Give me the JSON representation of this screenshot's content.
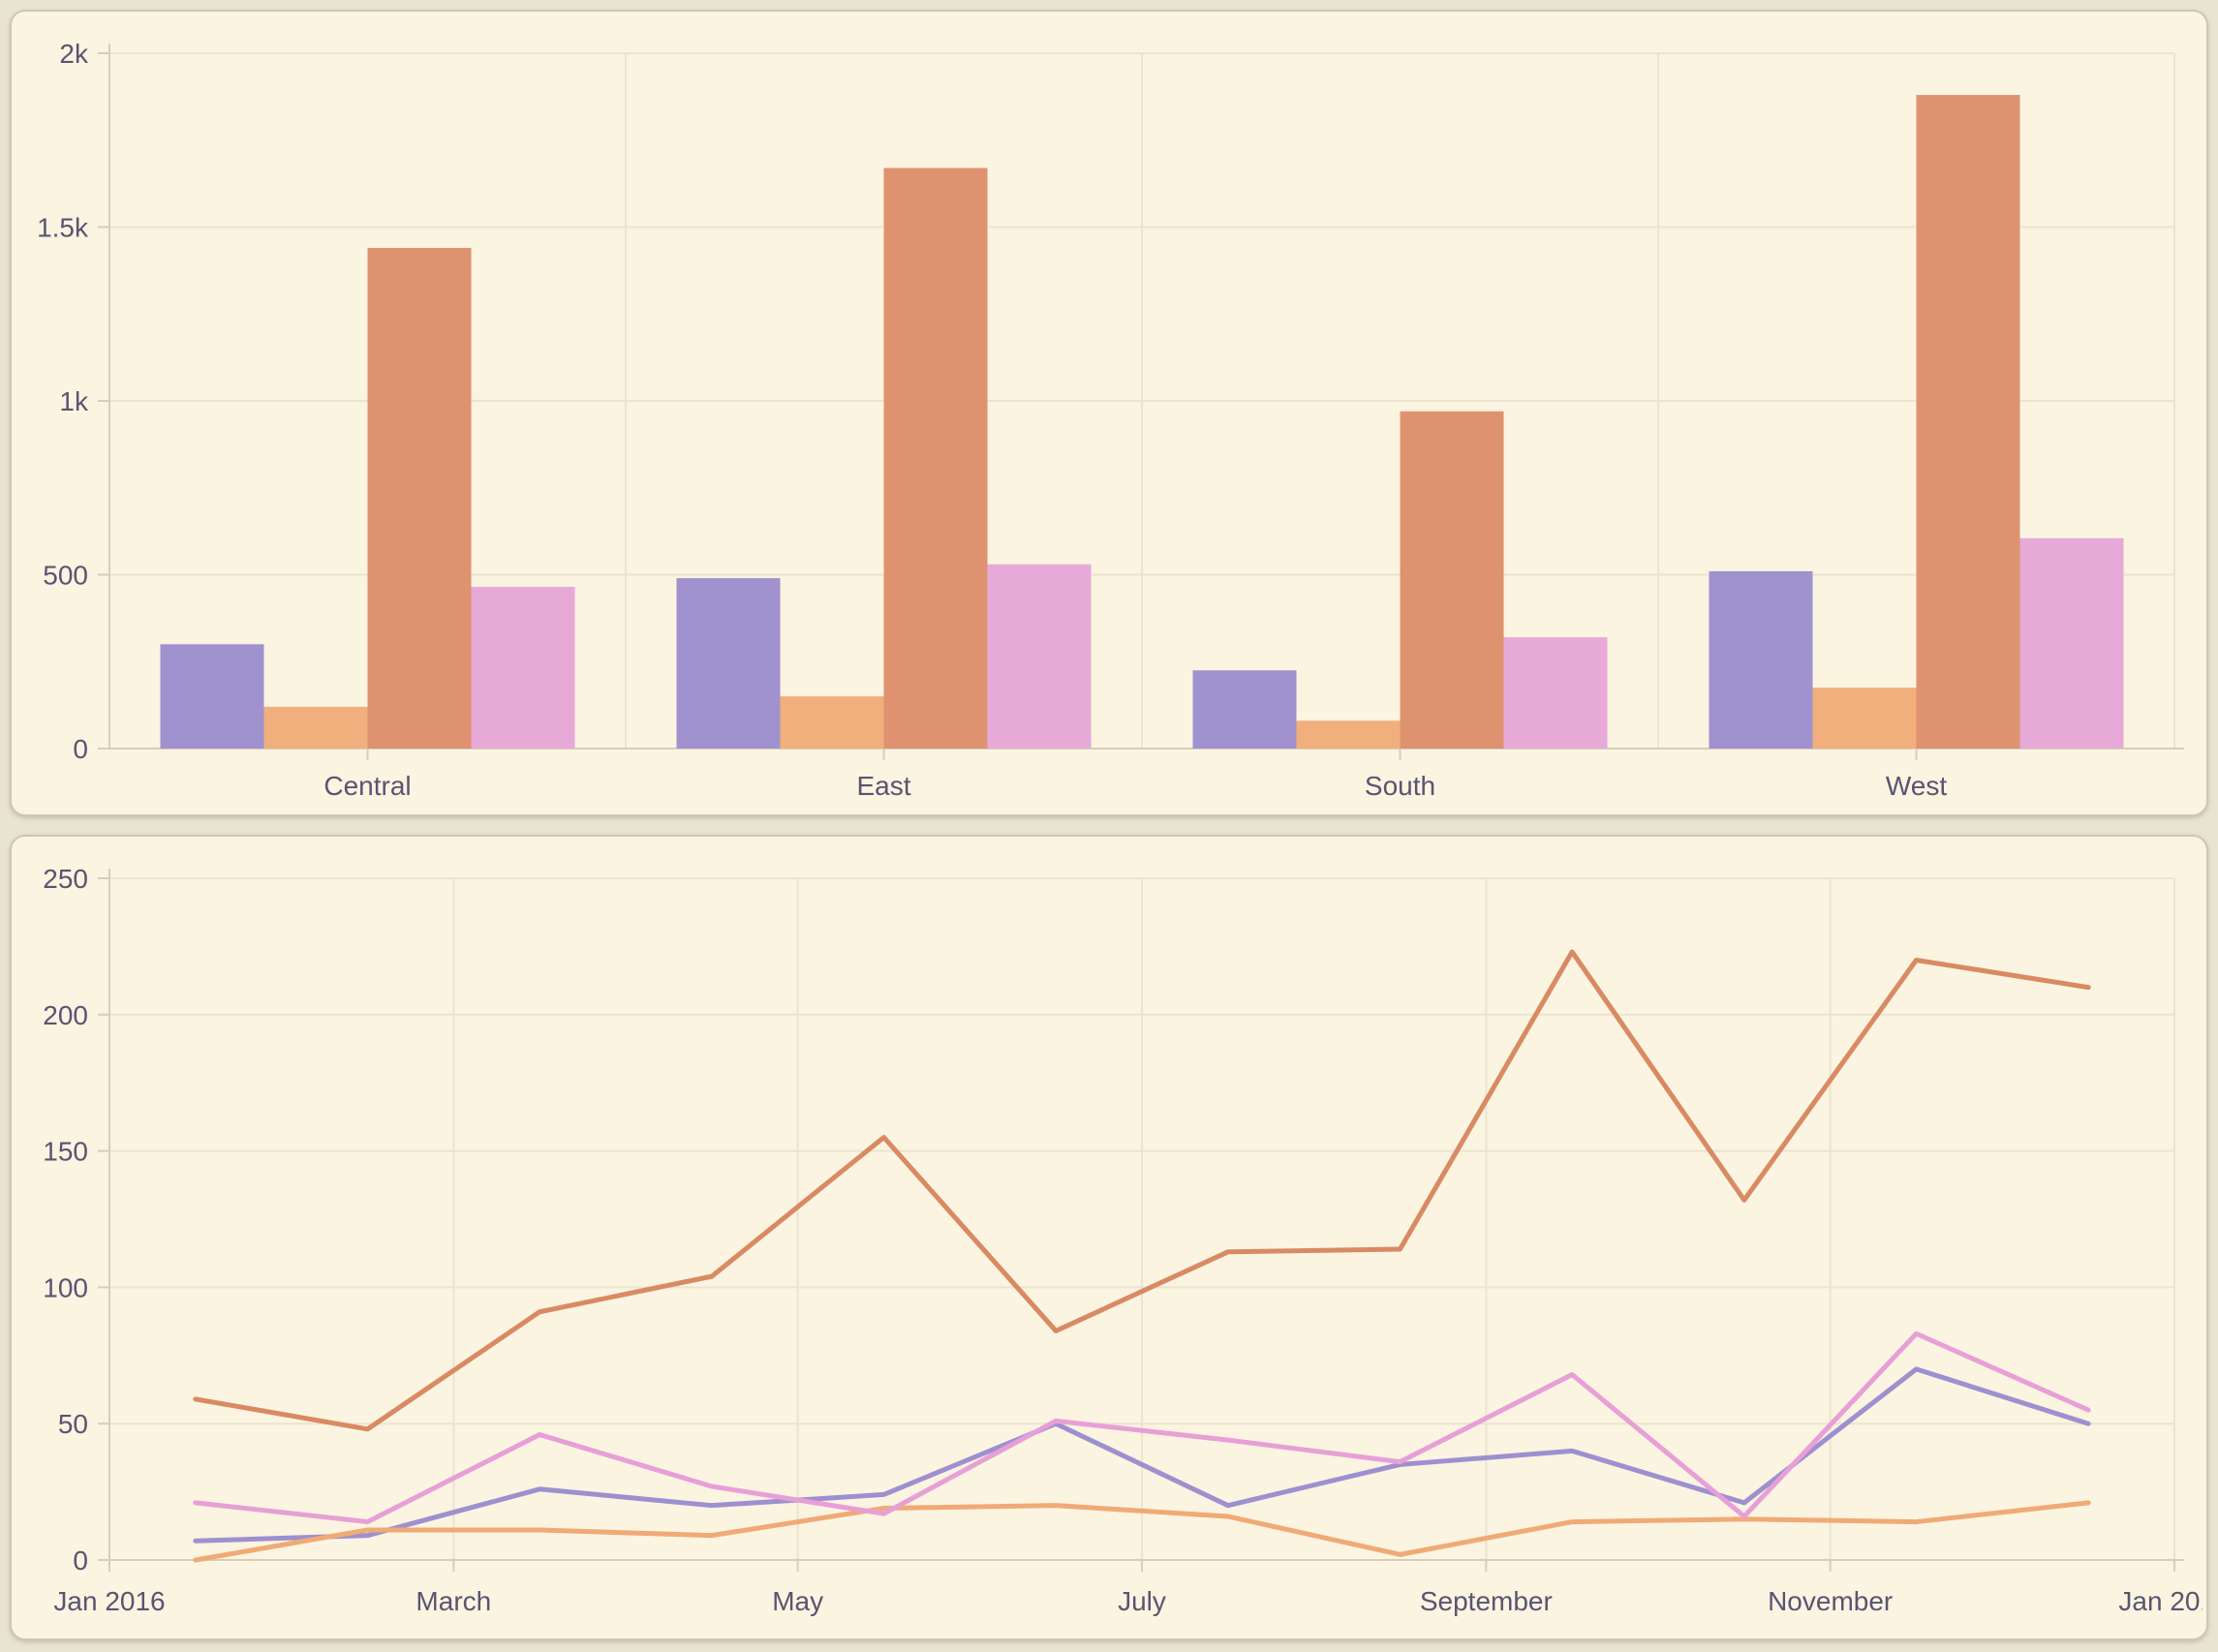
{
  "theme": {
    "page_background": "#e9e3d1",
    "panel_background": "#faf4e1",
    "panel_border": "#cdc7b6",
    "grid_color": "#ece4cf",
    "axis_color": "#d6cebb",
    "label_color": "#5a5472"
  },
  "chart_data": [
    {
      "type": "bar",
      "title": "",
      "legend": "none",
      "grid": true,
      "categories": [
        "Central",
        "East",
        "South",
        "West"
      ],
      "series": [
        {
          "name": "purple",
          "color": "#a092ce",
          "values": [
            300,
            490,
            225,
            510
          ]
        },
        {
          "name": "peach",
          "color": "#f1af7d",
          "values": [
            120,
            150,
            80,
            175
          ]
        },
        {
          "name": "salmon",
          "color": "#de9270",
          "values": [
            1440,
            1670,
            970,
            1880
          ]
        },
        {
          "name": "pink",
          "color": "#e7aad8",
          "values": [
            465,
            530,
            320,
            605
          ]
        }
      ],
      "ylim": [
        0,
        2000
      ],
      "yticks": [
        {
          "value": 0,
          "label": "0"
        },
        {
          "value": 500,
          "label": "500"
        },
        {
          "value": 1000,
          "label": "1k"
        },
        {
          "value": 1500,
          "label": "1.5k"
        },
        {
          "value": 2000,
          "label": "2k"
        }
      ]
    },
    {
      "type": "line",
      "title": "",
      "legend": "none",
      "grid": true,
      "x": [
        "Jan 2016",
        "Feb 2016",
        "Mar 2016",
        "Apr 2016",
        "May 2016",
        "Jun 2016",
        "Jul 2016",
        "Aug 2016",
        "Sep 2016",
        "Oct 2016",
        "Nov 2016",
        "Dec 2016"
      ],
      "xtick_labels": [
        "Jan 2016",
        "March",
        "May",
        "July",
        "September",
        "November",
        "Jan 2017"
      ],
      "series": [
        {
          "name": "purple",
          "color": "#9e90cf",
          "values": [
            7,
            9,
            26,
            20,
            24,
            50,
            20,
            35,
            40,
            21,
            70,
            50
          ]
        },
        {
          "name": "peach",
          "color": "#f0aa76",
          "values": [
            0,
            11,
            11,
            9,
            19,
            20,
            16,
            2,
            14,
            15,
            14,
            21
          ]
        },
        {
          "name": "salmon",
          "color": "#d98a63",
          "values": [
            59,
            48,
            91,
            104,
            155,
            84,
            113,
            114,
            223,
            132,
            220,
            210
          ]
        },
        {
          "name": "pink",
          "color": "#e89fd7",
          "values": [
            21,
            14,
            46,
            27,
            17,
            51,
            44,
            36,
            68,
            16,
            83,
            55
          ]
        }
      ],
      "ylim": [
        0,
        250
      ],
      "yticks": [
        {
          "value": 0,
          "label": "0"
        },
        {
          "value": 50,
          "label": "50"
        },
        {
          "value": 100,
          "label": "100"
        },
        {
          "value": 150,
          "label": "150"
        },
        {
          "value": 200,
          "label": "200"
        },
        {
          "value": 250,
          "label": "250"
        }
      ]
    }
  ]
}
